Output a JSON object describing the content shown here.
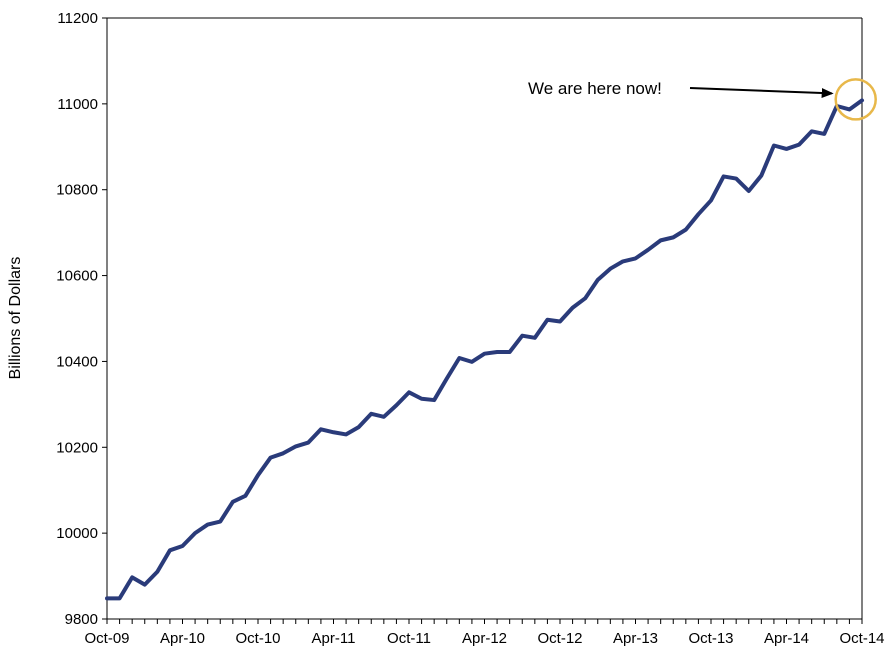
{
  "chart_data": {
    "type": "line",
    "title": "",
    "xlabel": "",
    "ylabel": "Billions  of Dollars",
    "ylim": [
      9800,
      11200
    ],
    "y_ticks": [
      9800,
      10000,
      10200,
      10400,
      10600,
      10800,
      11000,
      11200
    ],
    "x_tick_labels": [
      "Oct-09",
      "Apr-10",
      "Oct-10",
      "Apr-11",
      "Oct-11",
      "Apr-12",
      "Oct-12",
      "Apr-13",
      "Oct-13",
      "Apr-14",
      "Oct-14"
    ],
    "x_tick_months": [
      0,
      6,
      12,
      18,
      24,
      30,
      36,
      42,
      48,
      54,
      60
    ],
    "x_range_months": [
      0,
      60
    ],
    "grid": false,
    "legend": "none",
    "colors": {
      "series": "#2a3b7a",
      "highlight_circle": "#e8b84a",
      "axis": "#000000"
    },
    "series": [
      {
        "x": [
          "Oct-09",
          "Nov-09",
          "Dec-09",
          "Jan-10",
          "Feb-10",
          "Mar-10",
          "Apr-10",
          "May-10",
          "Jun-10",
          "Jul-10",
          "Aug-10",
          "Sep-10",
          "Oct-10",
          "Nov-10",
          "Dec-10",
          "Jan-11",
          "Feb-11",
          "Mar-11",
          "Apr-11",
          "May-11",
          "Jun-11",
          "Jul-11",
          "Aug-11",
          "Sep-11",
          "Oct-11",
          "Nov-11",
          "Dec-11",
          "Jan-12",
          "Feb-12",
          "Mar-12",
          "Apr-12",
          "May-12",
          "Jun-12",
          "Jul-12",
          "Aug-12",
          "Sep-12",
          "Oct-12",
          "Nov-12",
          "Dec-12",
          "Jan-13",
          "Feb-13",
          "Mar-13",
          "Apr-13",
          "May-13",
          "Jun-13",
          "Jul-13",
          "Aug-13",
          "Sep-13",
          "Oct-13",
          "Nov-13",
          "Dec-13",
          "Jan-14",
          "Feb-14",
          "Mar-14",
          "Apr-14",
          "May-14",
          "Jun-14",
          "Jul-14",
          "Aug-14",
          "Sep-14",
          "Oct-14"
        ],
        "values": [
          9848,
          9848,
          9897,
          9880,
          9910,
          9960,
          9970,
          10000,
          10020,
          10027,
          10073,
          10087,
          10135,
          10176,
          10186,
          10202,
          10211,
          10242,
          10235,
          10230,
          10247,
          10278,
          10271,
          10298,
          10328,
          10313,
          10310,
          10360,
          10408,
          10399,
          10418,
          10422,
          10422,
          10460,
          10455,
          10497,
          10493,
          10525,
          10547,
          10590,
          10616,
          10633,
          10640,
          10660,
          10682,
          10689,
          10707,
          10743,
          10775,
          10831,
          10826,
          10797,
          10833,
          10903,
          10895,
          10905,
          10936,
          10930,
          10995,
          10987,
          11008
        ]
      }
    ],
    "annotation": {
      "text": "We are here now!"
    }
  }
}
